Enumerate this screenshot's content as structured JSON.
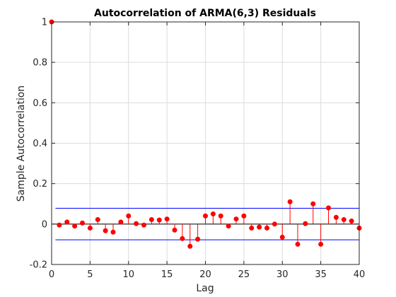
{
  "chart_data": {
    "type": "stem",
    "title": "Autocorrelation of ARMA(6,3) Residuals",
    "xlabel": "Lag",
    "ylabel": "Sample Autocorrelation",
    "xlim": [
      0,
      40
    ],
    "ylim": [
      -0.2,
      1
    ],
    "xticks": [
      0,
      5,
      10,
      15,
      20,
      25,
      30,
      35,
      40
    ],
    "yticks": [
      -0.2,
      0,
      0.2,
      0.4,
      0.6,
      0.8,
      1
    ],
    "grid": true,
    "confidence_bound": 0.078,
    "series": [
      {
        "x": [
          0,
          1,
          2,
          3,
          4,
          5,
          6,
          7,
          8,
          9,
          10,
          11,
          12,
          13,
          14,
          15,
          16,
          17,
          18,
          19,
          20,
          21,
          22,
          23,
          24,
          25,
          26,
          27,
          28,
          29,
          30,
          31,
          32,
          33,
          34,
          35,
          36,
          37,
          38,
          39,
          40
        ],
        "values": [
          1,
          -0.005,
          0.01,
          -0.01,
          0.005,
          -0.02,
          0.022,
          -0.033,
          -0.04,
          0.01,
          0.04,
          0.002,
          -0.005,
          0.022,
          0.02,
          0.025,
          -0.03,
          -0.072,
          -0.11,
          -0.075,
          0.04,
          0.05,
          0.04,
          -0.01,
          0.025,
          0.04,
          -0.02,
          -0.015,
          -0.02,
          0,
          -0.065,
          0.11,
          -0.1,
          0.002,
          0.1,
          -0.1,
          0.08,
          0.033,
          0.022,
          0.015,
          -0.02
        ]
      }
    ],
    "colors": {
      "stem": "#ff0000",
      "marker": "#ff0000",
      "baseline": "#000000",
      "bounds": "#0000ff",
      "grid": "#dcdcdc"
    }
  }
}
